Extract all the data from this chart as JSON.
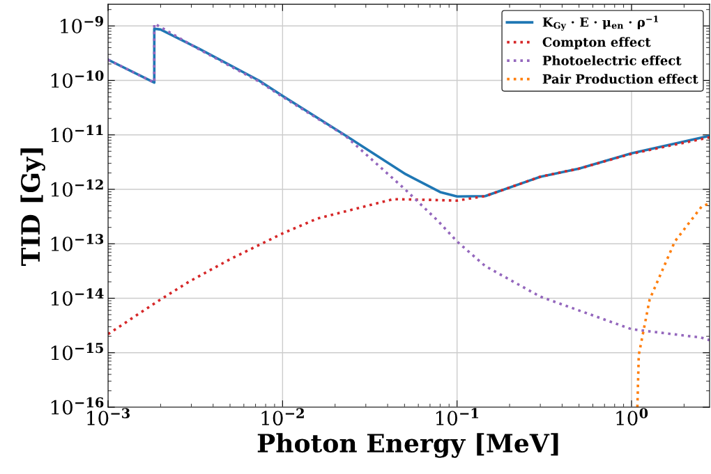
{
  "chart_data": {
    "type": "line",
    "xlabel": "Photon Energy [MeV]",
    "ylabel": "TID [Gy]",
    "log": "xy",
    "grid": true,
    "legend": "top right",
    "line_style": "dotted",
    "marker": "none",
    "xlim": [
      0.001,
      2.8
    ],
    "ylim": [
      1e-16,
      2.5e-09
    ],
    "xticks": [
      {
        "value": 0.001,
        "label": "10$^{−3}$"
      },
      {
        "value": 0.01,
        "label": "10$^{−2}$"
      },
      {
        "value": 0.1,
        "label": "10$^{−1}$"
      },
      {
        "value": 1,
        "label": "10$^{0}$"
      }
    ],
    "yticks": [
      {
        "value": 1e-16,
        "label": "10$^{−16}$"
      },
      {
        "value": 1e-15,
        "label": "10$^{−15}$"
      },
      {
        "value": 1e-14,
        "label": "10$^{−14}$"
      },
      {
        "value": 1e-13,
        "label": "10$^{−13}$"
      },
      {
        "value": 1e-12,
        "label": "10$^{−12}$"
      },
      {
        "value": 1e-11,
        "label": "10$^{−11}$"
      },
      {
        "value": 1e-10,
        "label": "10$^{−10}$"
      },
      {
        "value": 1e-09,
        "label": "10$^{−9}$"
      }
    ],
    "series": [
      {
        "name": "K$_{Gy}$ · E · μ$_{en}$ · ρ$^{−1}$",
        "color": "#1f77b4",
        "line_style": "solid",
        "x": [
          0.001,
          0.00184,
          0.00184,
          0.002,
          0.00333,
          0.0073,
          0.01,
          0.0229,
          0.0507,
          0.08,
          0.1,
          0.145,
          0.3,
          0.5,
          1.0,
          2.8
        ],
        "values": [
          2.4e-10,
          9.1e-11,
          8.9e-10,
          8.6e-10,
          3.8e-10,
          1e-10,
          5.2e-11,
          9.8e-12,
          1.9e-12,
          8.9e-13,
          7.4e-13,
          7.5e-13,
          1.7e-12,
          2.4e-12,
          4.6e-12,
          9.6e-12
        ]
      },
      {
        "name": "Compton effect",
        "color": "#d62728",
        "x": [
          0.001,
          0.002,
          0.0029,
          0.005,
          0.01,
          0.0158,
          0.043,
          0.07,
          0.1,
          0.145,
          0.3,
          0.5,
          1.0,
          2.8
        ],
        "values": [
          2.2e-15,
          9.5e-15,
          2e-14,
          5.2e-14,
          1.55e-13,
          2.9e-13,
          6.6e-13,
          6.4e-13,
          6.2e-13,
          7.5e-13,
          1.7e-12,
          2.4e-12,
          4.5e-12,
          9e-12
        ]
      },
      {
        "name": "Photoelectric effect",
        "color": "#9467bd",
        "x": [
          0.001,
          0.00184,
          0.00184,
          0.002,
          0.00333,
          0.0073,
          0.01,
          0.0229,
          0.0507,
          0.078,
          0.1,
          0.145,
          0.3,
          1.0,
          2.5,
          2.8
        ],
        "values": [
          2.4e-10,
          9.1e-11,
          1.1e-09,
          9.5e-10,
          3.7e-10,
          9.6e-11,
          5e-11,
          9.6e-12,
          9.8e-13,
          2.6e-13,
          1.1e-13,
          3.9e-14,
          1.07e-14,
          2.7e-15,
          1.9e-15,
          1.7e-15
        ]
      },
      {
        "name": "Pair Production effect",
        "color": "#ff7f0e",
        "x": [
          1.08,
          1.1,
          1.27,
          1.77,
          2.53,
          2.8
        ],
        "values": [
          1e-16,
          9.1e-16,
          9.5e-15,
          1.1e-13,
          4.9e-13,
          5.5e-13
        ]
      }
    ]
  }
}
